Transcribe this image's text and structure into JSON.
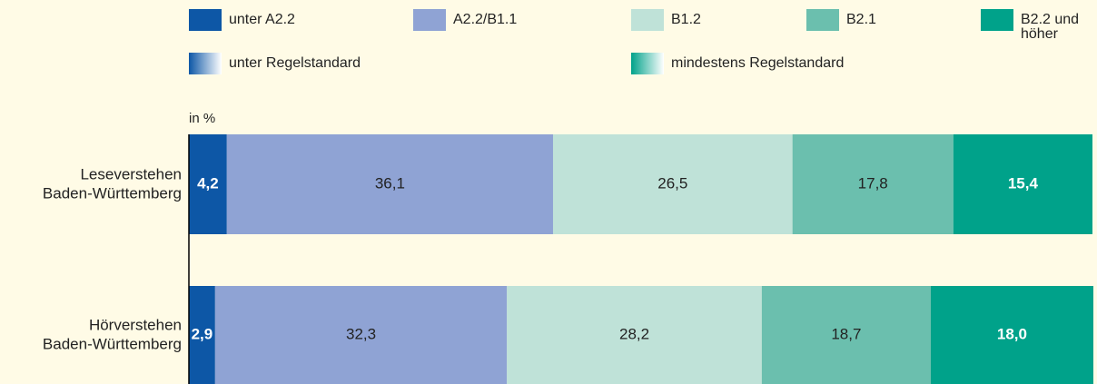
{
  "chart_data": {
    "type": "stacked_barh",
    "unit_label": "in %",
    "categories": [
      [
        "Leseverstehen",
        "Baden-Württemberg"
      ],
      [
        "Hörverstehen",
        "Baden-Württemberg"
      ]
    ],
    "xlim": [
      0,
      100
    ],
    "series": [
      {
        "name": "unter A2.2",
        "color": "#0d57a6",
        "label_color": "#ffffff",
        "label_bold": true,
        "values": [
          4.2,
          2.9
        ],
        "value_labels": [
          "4,2",
          "2,9"
        ]
      },
      {
        "name": "A2.2/B1.1",
        "color": "#8fa3d4",
        "label_color": "#222222",
        "label_bold": false,
        "values": [
          36.1,
          32.3
        ],
        "value_labels": [
          "36,1",
          "32,3"
        ]
      },
      {
        "name": "B1.2",
        "color": "#bfe2d8",
        "label_color": "#222222",
        "label_bold": false,
        "values": [
          26.5,
          28.2
        ],
        "value_labels": [
          "26,5",
          "28,2"
        ]
      },
      {
        "name": "B2.1",
        "color": "#6bbfae",
        "label_color": "#222222",
        "label_bold": false,
        "values": [
          17.8,
          18.7
        ],
        "value_labels": [
          "17,8",
          "18,7"
        ]
      },
      {
        "name": "B2.2 und höher",
        "color": "#00a28a",
        "label_color": "#ffffff",
        "label_bold": true,
        "values": [
          15.4,
          18.0
        ],
        "value_labels": [
          "15,4",
          "18,0"
        ]
      }
    ],
    "legend_groups": [
      {
        "name": "unter Regelstandard",
        "color_from": "#0d57a6",
        "color_to": "#ffffff"
      },
      {
        "name": "mindestens Regelstandard",
        "color_from": "#00a28a",
        "color_to": "#ffffff"
      }
    ]
  }
}
